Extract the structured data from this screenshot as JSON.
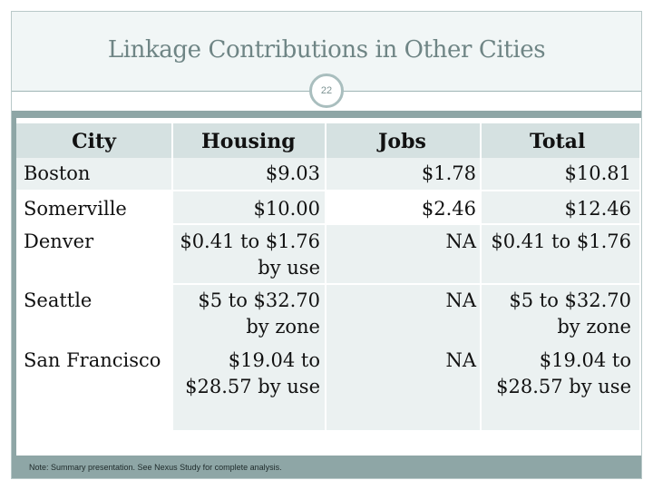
{
  "slide": {
    "title": "Linkage Contributions in Other Cities",
    "page_number": "22",
    "note": "Note: Summary presentation. See Nexus Study for complete analysis."
  },
  "table": {
    "headers": [
      "City",
      "Housing",
      "Jobs",
      "Total"
    ],
    "rows": [
      {
        "city": "Boston",
        "housing": [
          "$9.03"
        ],
        "jobs": "$1.78",
        "total": [
          "$10.81"
        ]
      },
      {
        "city": "Somerville",
        "housing": [
          "$10.00"
        ],
        "jobs": "$2.46",
        "total": [
          "$12.46"
        ]
      },
      {
        "city": "Denver",
        "housing": [
          "$0.41 to $1.76",
          "by use"
        ],
        "jobs": "NA",
        "total": [
          "$0.41 to $1.76"
        ]
      },
      {
        "city": "Seattle",
        "housing": [
          "$5 to $32.70",
          "by zone"
        ],
        "jobs": "NA",
        "total": [
          "$5 to $32.70",
          "by zone"
        ]
      },
      {
        "city": "San Francisco",
        "housing": [
          "$19.04 to",
          "$28.57 by use"
        ],
        "jobs": "NA",
        "total": [
          "$19.04 to",
          "$28.57 by use"
        ]
      }
    ]
  },
  "colors": {
    "accent_band": "#8ea6a6",
    "header_fill": "#d5e1e1",
    "row_fill": "#ebf1f1",
    "title_text": "#6f8585"
  }
}
